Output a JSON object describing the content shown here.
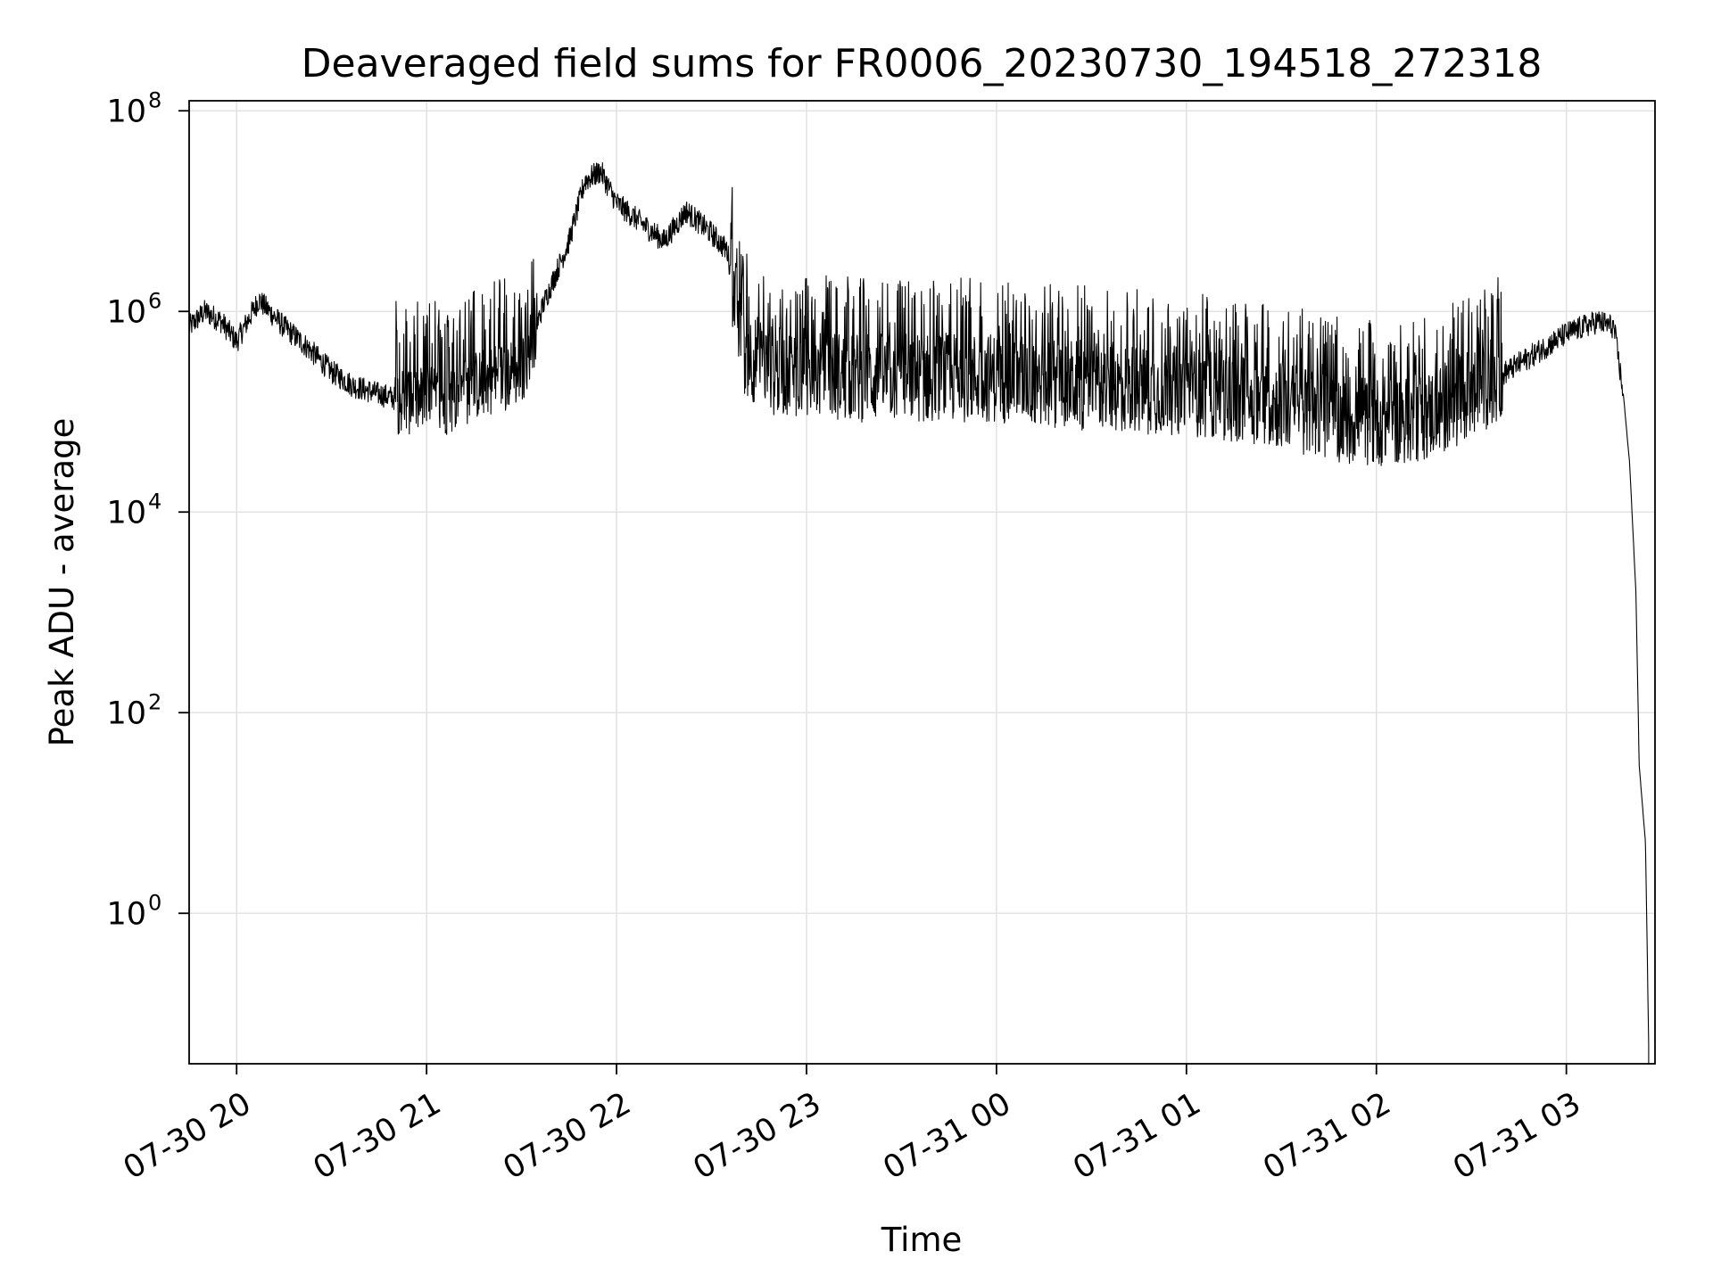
{
  "chart_data": {
    "type": "line",
    "title": "Deaveraged field sums for FR0006_20230730_194518_272318",
    "xlabel": "Time",
    "ylabel": "Peak ADU - average",
    "xscale": "time",
    "yscale": "log",
    "xlim": [
      "2023-07-30 19:45",
      "2023-07-31 03:28"
    ],
    "ylim_log10": [
      -1.5,
      8.1
    ],
    "grid": true,
    "legend": "none",
    "line_color": "#000000",
    "x_ticks": [
      {
        "value": "2023-07-30 20:00",
        "label": "07-30 20"
      },
      {
        "value": "2023-07-30 21:00",
        "label": "07-30 21"
      },
      {
        "value": "2023-07-30 22:00",
        "label": "07-30 22"
      },
      {
        "value": "2023-07-30 23:00",
        "label": "07-30 23"
      },
      {
        "value": "2023-07-31 00:00",
        "label": "07-31 00"
      },
      {
        "value": "2023-07-31 01:00",
        "label": "07-31 01"
      },
      {
        "value": "2023-07-31 02:00",
        "label": "07-31 02"
      },
      {
        "value": "2023-07-31 03:00",
        "label": "07-31 03"
      }
    ],
    "y_ticks": [
      {
        "value": 1,
        "base": "10",
        "exp": "0"
      },
      {
        "value": 100,
        "base": "10",
        "exp": "2"
      },
      {
        "value": 10000,
        "base": "10",
        "exp": "4"
      },
      {
        "value": 1000000,
        "base": "10",
        "exp": "6"
      },
      {
        "value": 100000000,
        "base": "10",
        "exp": "8"
      }
    ],
    "series": [
      {
        "values_note": "",
        "points": [
          [
            "2023-07-30 19:45",
            700000
          ],
          [
            "2023-07-30 19:50",
            1000000
          ],
          [
            "2023-07-30 19:55",
            800000
          ],
          [
            "2023-07-30 20:00",
            500000
          ],
          [
            "2023-07-30 20:07",
            1300000
          ],
          [
            "2023-07-30 20:15",
            700000
          ],
          [
            "2023-07-30 20:22",
            450000
          ],
          [
            "2023-07-30 20:30",
            250000
          ],
          [
            "2023-07-30 20:37",
            180000
          ],
          [
            "2023-07-30 20:45",
            150000
          ],
          [
            "2023-07-30 20:52",
            130000
          ],
          [
            "2023-07-30 21:00",
            130000
          ],
          [
            "2023-07-30 21:07",
            130000
          ],
          [
            "2023-07-30 21:15",
            180000
          ],
          [
            "2023-07-30 21:22",
            220000
          ],
          [
            "2023-07-30 21:30",
            250000
          ],
          [
            "2023-07-30 21:37",
            1200000
          ],
          [
            "2023-07-30 21:45",
            5000000
          ],
          [
            "2023-07-30 21:50",
            20000000
          ],
          [
            "2023-07-30 21:55",
            25000000
          ],
          [
            "2023-07-30 22:00",
            12000000
          ],
          [
            "2023-07-30 22:07",
            8000000
          ],
          [
            "2023-07-30 22:15",
            5000000
          ],
          [
            "2023-07-30 22:22",
            10000000
          ],
          [
            "2023-07-30 22:30",
            6000000
          ],
          [
            "2023-07-30 22:35",
            4000000
          ],
          [
            "2023-07-30 22:40",
            400000
          ],
          [
            "2023-07-30 22:50",
            250000
          ],
          [
            "2023-07-30 23:00",
            250000
          ],
          [
            "2023-07-30 23:15",
            220000
          ],
          [
            "2023-07-30 23:30",
            220000
          ],
          [
            "2023-07-30 23:45",
            220000
          ],
          [
            "2023-07-31 00:00",
            220000
          ],
          [
            "2023-07-31 00:15",
            200000
          ],
          [
            "2023-07-31 00:30",
            180000
          ],
          [
            "2023-07-31 00:45",
            170000
          ],
          [
            "2023-07-31 01:00",
            160000
          ],
          [
            "2023-07-31 01:15",
            140000
          ],
          [
            "2023-07-31 01:30",
            120000
          ],
          [
            "2023-07-31 01:45",
            90000
          ],
          [
            "2023-07-31 02:00",
            80000
          ],
          [
            "2023-07-31 02:15",
            90000
          ],
          [
            "2023-07-31 02:30",
            150000
          ],
          [
            "2023-07-31 02:45",
            300000
          ],
          [
            "2023-07-31 03:00",
            600000
          ],
          [
            "2023-07-31 03:10",
            800000
          ],
          [
            "2023-07-31 03:15",
            700000
          ],
          [
            "2023-07-31 03:18",
            150000
          ],
          [
            "2023-07-31 03:20",
            30000
          ],
          [
            "2023-07-31 03:22",
            1500
          ],
          [
            "2023-07-31 03:23",
            30
          ],
          [
            "2023-07-31 03:25",
            5
          ],
          [
            "2023-07-31 03:26",
            0.05
          ]
        ]
      }
    ]
  }
}
